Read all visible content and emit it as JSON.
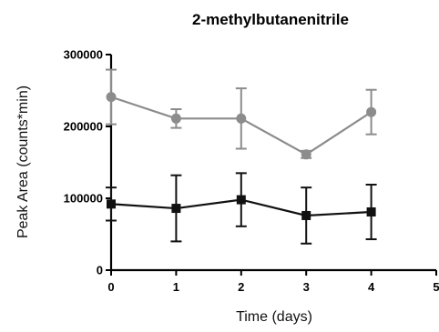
{
  "chart_data": {
    "type": "line",
    "title": "2-methylbutanenitrile",
    "xlabel": "Time (days)",
    "ylabel": "Peak Area (counts*min)",
    "xlim": [
      0,
      5
    ],
    "ylim": [
      0,
      300000
    ],
    "x_ticks": [
      "0",
      "1",
      "2",
      "3",
      "4",
      "5"
    ],
    "y_ticks": [
      "0",
      "100000",
      "200000",
      "300000"
    ],
    "grid": false,
    "legend": "none",
    "series": [
      {
        "color": "#8c8c8c",
        "marker": "circle",
        "points": [
          {
            "x": 0,
            "y": 241000,
            "err": 38000
          },
          {
            "x": 1,
            "y": 211000,
            "err": 13000
          },
          {
            "x": 2,
            "y": 211000,
            "err": 42000
          },
          {
            "x": 3,
            "y": 161000,
            "err": 5000
          },
          {
            "x": 4,
            "y": 220000,
            "err": 31000
          }
        ]
      },
      {
        "color": "#111111",
        "marker": "square",
        "points": [
          {
            "x": 0,
            "y": 92000,
            "err": 23000
          },
          {
            "x": 1,
            "y": 86000,
            "err": 46000
          },
          {
            "x": 2,
            "y": 98000,
            "err": 37000
          },
          {
            "x": 3,
            "y": 76000,
            "err": 39000
          },
          {
            "x": 4,
            "y": 81000,
            "err": 38000
          }
        ]
      }
    ]
  }
}
